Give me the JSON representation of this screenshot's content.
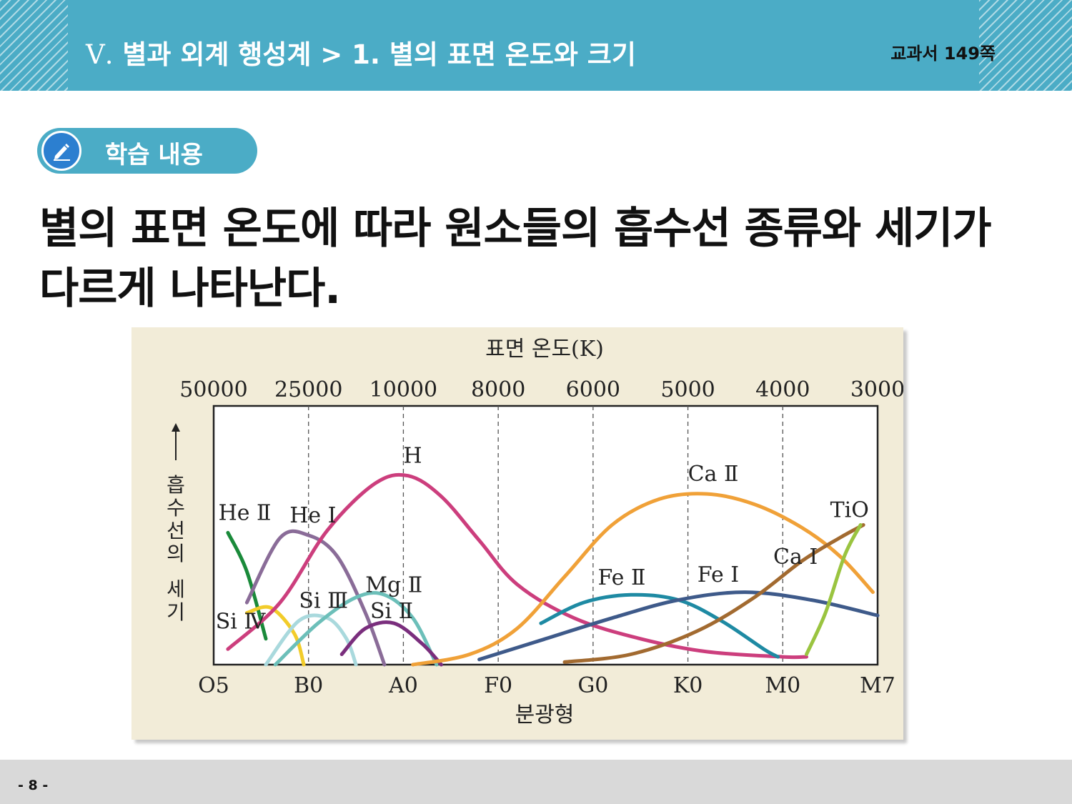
{
  "header": {
    "breadcrumb_roman": "Ⅴ.",
    "breadcrumb_text": "별과 외계 행성계 > 1. 별의 표면 온도와 크기",
    "page_ref": "교과서  149쪽"
  },
  "section": {
    "badge_label": "학습 내용",
    "badge_icon": "pencil-icon"
  },
  "heading": "별의 표면 온도에 따라 원소들의 흡수선 종류와 세기가 다르게 나타난다.",
  "footer": {
    "page_number": "- 8 -"
  },
  "chart_data": {
    "type": "line",
    "title": "표면 온도(K)",
    "xlabel": "분광형",
    "ylabel": "흡수선의 세기",
    "categories": [
      "O5",
      "B0",
      "A0",
      "F0",
      "G0",
      "K0",
      "M0",
      "M7"
    ],
    "top_ticks": [
      "50000",
      "25000",
      "10000",
      "8000",
      "6000",
      "5000",
      "4000",
      "3000"
    ],
    "xlim": [
      0,
      7
    ],
    "ylim": [
      0,
      1
    ],
    "grid": "dashed vertical lines at B0, A0, F0, G0, K0, M0",
    "series": [
      {
        "name": "He Ⅱ",
        "color": "#1a8a3a",
        "points": [
          [
            0.15,
            0.51
          ],
          [
            0.35,
            0.36
          ],
          [
            0.55,
            0.1
          ]
        ]
      },
      {
        "name": "He Ⅰ",
        "color": "#8a6c98",
        "points": [
          [
            0.35,
            0.24
          ],
          [
            0.7,
            0.49
          ],
          [
            1.0,
            0.5
          ],
          [
            1.3,
            0.42
          ],
          [
            1.6,
            0.2
          ],
          [
            1.8,
            0.0
          ]
        ]
      },
      {
        "name": "Si Ⅳ",
        "color": "#f2cc2a",
        "points": [
          [
            0.35,
            0.2
          ],
          [
            0.6,
            0.22
          ],
          [
            0.85,
            0.12
          ],
          [
            0.95,
            0.0
          ]
        ]
      },
      {
        "name": "Si Ⅲ",
        "color": "#a9d9dd",
        "points": [
          [
            0.55,
            0.0
          ],
          [
            0.9,
            0.17
          ],
          [
            1.2,
            0.18
          ],
          [
            1.4,
            0.1
          ],
          [
            1.5,
            0.0
          ]
        ]
      },
      {
        "name": "Mg Ⅱ",
        "color": "#6cbfb9",
        "points": [
          [
            0.65,
            0.0
          ],
          [
            1.1,
            0.16
          ],
          [
            1.5,
            0.26
          ],
          [
            1.8,
            0.27
          ],
          [
            2.1,
            0.18
          ],
          [
            2.35,
            0.0
          ]
        ]
      },
      {
        "name": "Si Ⅱ",
        "color": "#7a2e7d",
        "points": [
          [
            1.35,
            0.04
          ],
          [
            1.6,
            0.14
          ],
          [
            1.9,
            0.16
          ],
          [
            2.2,
            0.08
          ],
          [
            2.4,
            0.0
          ]
        ]
      },
      {
        "name": "H",
        "color": "#cc3e7d",
        "points": [
          [
            0.15,
            0.06
          ],
          [
            0.7,
            0.24
          ],
          [
            1.2,
            0.52
          ],
          [
            1.7,
            0.7
          ],
          [
            2.05,
            0.73
          ],
          [
            2.4,
            0.65
          ],
          [
            2.8,
            0.48
          ],
          [
            3.2,
            0.31
          ],
          [
            3.8,
            0.18
          ],
          [
            4.5,
            0.1
          ],
          [
            5.2,
            0.05
          ],
          [
            6.0,
            0.03
          ],
          [
            6.25,
            0.03
          ]
        ]
      },
      {
        "name": "Ca Ⅱ",
        "color": "#f0a138",
        "points": [
          [
            2.1,
            0.0
          ],
          [
            2.7,
            0.04
          ],
          [
            3.2,
            0.14
          ],
          [
            3.7,
            0.34
          ],
          [
            4.2,
            0.54
          ],
          [
            4.7,
            0.64
          ],
          [
            5.2,
            0.66
          ],
          [
            5.7,
            0.62
          ],
          [
            6.2,
            0.53
          ],
          [
            6.6,
            0.42
          ],
          [
            6.95,
            0.28
          ]
        ]
      },
      {
        "name": "Fe Ⅱ",
        "color": "#1e8aa3",
        "points": [
          [
            3.45,
            0.16
          ],
          [
            3.9,
            0.24
          ],
          [
            4.4,
            0.27
          ],
          [
            4.9,
            0.25
          ],
          [
            5.35,
            0.17
          ],
          [
            5.8,
            0.06
          ],
          [
            5.95,
            0.03
          ]
        ]
      },
      {
        "name": "Fe Ⅰ",
        "color": "#3e5a8a",
        "points": [
          [
            2.8,
            0.02
          ],
          [
            3.5,
            0.1
          ],
          [
            4.2,
            0.18
          ],
          [
            4.9,
            0.25
          ],
          [
            5.6,
            0.28
          ],
          [
            6.3,
            0.25
          ],
          [
            7.0,
            0.19
          ]
        ]
      },
      {
        "name": "Ca Ⅰ",
        "color": "#a26a30",
        "points": [
          [
            3.7,
            0.01
          ],
          [
            4.4,
            0.04
          ],
          [
            5.1,
            0.13
          ],
          [
            5.7,
            0.26
          ],
          [
            6.2,
            0.4
          ],
          [
            6.6,
            0.49
          ],
          [
            6.85,
            0.54
          ]
        ]
      },
      {
        "name": "TiO",
        "color": "#9ac440",
        "points": [
          [
            6.25,
            0.04
          ],
          [
            6.45,
            0.2
          ],
          [
            6.65,
            0.42
          ],
          [
            6.82,
            0.54
          ]
        ]
      }
    ]
  }
}
